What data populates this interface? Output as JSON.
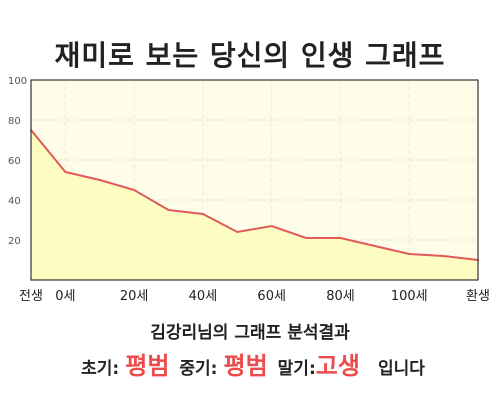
{
  "title": "재미로 보는 당신의 인생 그래프",
  "analysis_text": "김강리님의 그래프 분석결과",
  "verdict": {
    "early_label": "초기:",
    "early_value": "평범",
    "mid_label": "중기:",
    "mid_value": "평범",
    "late_label": "말기:",
    "late_value": "고생",
    "ending": "입니다"
  },
  "colors": {
    "line": "#e05a5a",
    "fill": "#fdfdc2",
    "plot_background": "#fefee8",
    "accent": "#ee4c4c"
  },
  "chart_data": {
    "type": "area",
    "title": "재미로 보는 당신의 인생 그래프",
    "x_tick_labels": [
      "전생",
      "0세",
      "20세",
      "40세",
      "60세",
      "80세",
      "100세",
      "환생"
    ],
    "x": [
      "전생",
      "0세",
      "",
      "20세",
      "",
      "40세",
      "",
      "60세",
      "",
      "80세",
      "",
      "100세",
      "",
      "환생"
    ],
    "values": [
      75,
      54,
      50,
      45,
      35,
      33,
      24,
      27,
      21,
      21,
      17,
      13,
      12,
      10
    ],
    "y_ticks": [
      20,
      40,
      60,
      80,
      100
    ],
    "ylim": [
      0,
      100
    ],
    "grid": true,
    "legend": "none"
  }
}
